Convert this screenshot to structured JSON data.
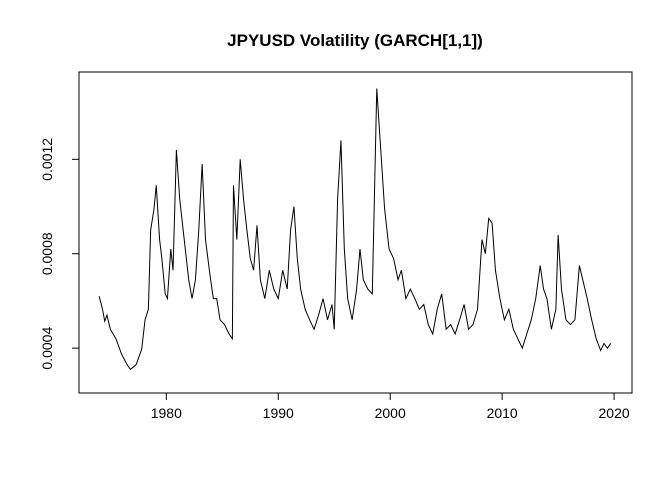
{
  "chart_data": {
    "type": "line",
    "title": "JPYUSD Volatility (GARCH[1,1])",
    "x": [
      1974.0,
      1974.3,
      1974.5,
      1974.7,
      1975.0,
      1975.5,
      1976.0,
      1976.5,
      1976.8,
      1977.3,
      1977.8,
      1978.1,
      1978.4,
      1978.6,
      1978.9,
      1979.1,
      1979.4,
      1979.6,
      1979.9,
      1980.1,
      1980.4,
      1980.6,
      1980.9,
      1981.2,
      1981.6,
      1982.0,
      1982.3,
      1982.6,
      1982.9,
      1983.2,
      1983.5,
      1983.9,
      1984.2,
      1984.5,
      1984.8,
      1985.2,
      1985.6,
      1985.9,
      1986.0,
      1986.3,
      1986.6,
      1986.9,
      1987.2,
      1987.5,
      1987.8,
      1988.1,
      1988.4,
      1988.8,
      1989.2,
      1989.6,
      1990.0,
      1990.4,
      1990.8,
      1991.1,
      1991.4,
      1991.7,
      1992.0,
      1992.4,
      1992.8,
      1993.2,
      1993.6,
      1994.0,
      1994.4,
      1994.8,
      1995.0,
      1995.3,
      1995.6,
      1995.9,
      1996.2,
      1996.6,
      1997.0,
      1997.3,
      1997.6,
      1998.0,
      1998.4,
      1998.8,
      1999.1,
      1999.5,
      1999.9,
      2000.3,
      2000.7,
      2001.0,
      2001.4,
      2001.8,
      2002.2,
      2002.6,
      2003.0,
      2003.4,
      2003.8,
      2004.2,
      2004.6,
      2005.0,
      2005.4,
      2005.8,
      2006.2,
      2006.6,
      2007.0,
      2007.4,
      2007.8,
      2008.2,
      2008.5,
      2008.8,
      2009.1,
      2009.4,
      2009.8,
      2010.2,
      2010.6,
      2011.0,
      2011.4,
      2011.8,
      2012.2,
      2012.6,
      2013.0,
      2013.4,
      2013.7,
      2014.0,
      2014.4,
      2014.8,
      2015.0,
      2015.3,
      2015.7,
      2016.1,
      2016.5,
      2016.9,
      2017.2,
      2017.6,
      2018.0,
      2018.4,
      2018.8,
      2019.1,
      2019.4,
      2019.7
    ],
    "values": [
      0.00062,
      0.000565,
      0.000514,
      0.00054,
      0.00048,
      0.00044,
      0.000375,
      0.00033,
      0.00031,
      0.00033,
      0.000395,
      0.00052,
      0.000565,
      0.0009,
      0.00099,
      0.00109,
      0.00086,
      0.00078,
      0.00063,
      0.00061,
      0.00082,
      0.00073,
      0.00124,
      0.00103,
      0.00086,
      0.00069,
      0.00061,
      0.00069,
      0.0009,
      0.00118,
      0.00086,
      0.00071,
      0.00061,
      0.00061,
      0.00052,
      0.0005,
      0.00046,
      0.00044,
      0.00109,
      0.00086,
      0.0012,
      0.00103,
      0.0009,
      0.00078,
      0.00073,
      0.00092,
      0.00069,
      0.00061,
      0.00073,
      0.00065,
      0.00061,
      0.00073,
      0.00065,
      0.0009,
      0.001,
      0.00078,
      0.00065,
      0.000565,
      0.00052,
      0.00048,
      0.00054,
      0.00061,
      0.00052,
      0.000585,
      0.00048,
      0.00103,
      0.00128,
      0.00082,
      0.00061,
      0.00052,
      0.00065,
      0.00082,
      0.00069,
      0.00065,
      0.00063,
      0.0015,
      0.00128,
      0.00099,
      0.00082,
      0.00078,
      0.00069,
      0.00073,
      0.00061,
      0.00065,
      0.00061,
      0.000565,
      0.000585,
      0.0005,
      0.00046,
      0.000565,
      0.00063,
      0.00048,
      0.0005,
      0.00046,
      0.00052,
      0.000585,
      0.00048,
      0.0005,
      0.000565,
      0.00086,
      0.0008,
      0.00095,
      0.00093,
      0.00073,
      0.00061,
      0.00052,
      0.000565,
      0.00048,
      0.00044,
      0.0004,
      0.00046,
      0.00052,
      0.00061,
      0.00075,
      0.00065,
      0.00061,
      0.00048,
      0.000565,
      0.00088,
      0.00065,
      0.00052,
      0.0005,
      0.00052,
      0.00075,
      0.00069,
      0.00061,
      0.00052,
      0.00044,
      0.00039,
      0.00042,
      0.0004,
      0.00042
    ],
    "color": "#000000",
    "xlim": [
      1972.2,
      2021.6
    ],
    "xticks": [
      1980,
      1990,
      2000,
      2010,
      2020
    ],
    "ylim": [
      0.00021,
      0.00157
    ],
    "yticks": [
      0.0004,
      0.0008,
      0.0012
    ]
  }
}
